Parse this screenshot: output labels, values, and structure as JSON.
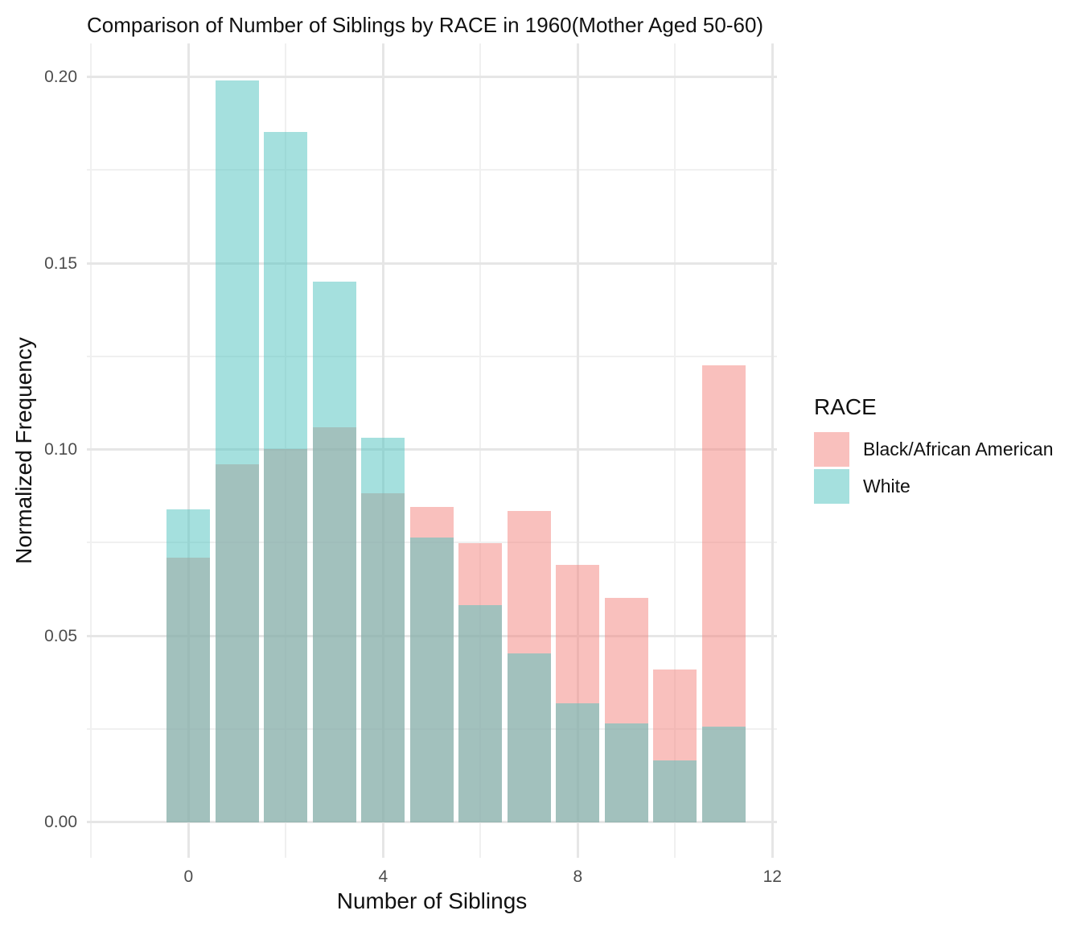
{
  "chart_data": {
    "type": "bar",
    "mode": "overlay",
    "title": "Comparison of Number of Siblings by RACE in 1960(Mother Aged 50-60)",
    "xlabel": "Number of Siblings",
    "ylabel": "Normalized Frequency",
    "legend_title": "RACE",
    "legend_position": "right",
    "grid": true,
    "x": [
      0,
      1,
      2,
      3,
      4,
      5,
      6,
      7,
      8,
      9,
      10,
      11
    ],
    "bar_width": 0.9,
    "series": [
      {
        "name": "Black/African American",
        "fill": "rgba(244,129,123,0.5)",
        "base_color": "#F4817B",
        "values": [
          0.0711,
          0.0961,
          0.1002,
          0.106,
          0.0882,
          0.0847,
          0.0749,
          0.0835,
          0.069,
          0.0601,
          0.041,
          0.1227
        ]
      },
      {
        "name": "White",
        "fill": "rgba(76,194,190,0.5)",
        "base_color": "#4CC2BE",
        "values": [
          0.0839,
          0.1991,
          0.1852,
          0.1451,
          0.1031,
          0.0765,
          0.0582,
          0.0454,
          0.032,
          0.0266,
          0.0166,
          0.0257
        ]
      }
    ],
    "xlim": [
      -2.088,
      12.094
    ],
    "ylim": [
      -0.00957,
      0.209
    ],
    "x_ticks": {
      "major": [
        {
          "value": 0,
          "label": "0"
        },
        {
          "value": 4,
          "label": "4"
        },
        {
          "value": 8,
          "label": "8"
        },
        {
          "value": 12,
          "label": "12"
        }
      ],
      "minor": [
        -2,
        2,
        6,
        10
      ]
    },
    "y_ticks": {
      "major": [
        {
          "value": 0.0,
          "label": "0.00"
        },
        {
          "value": 0.05,
          "label": "0.05"
        },
        {
          "value": 0.1,
          "label": "0.10"
        },
        {
          "value": 0.15,
          "label": "0.15"
        },
        {
          "value": 0.2,
          "label": "0.20"
        }
      ],
      "minor": [
        0.025,
        0.075,
        0.125,
        0.175
      ]
    },
    "colors": {
      "tick_label": "#4d4d4d",
      "text": "#111111",
      "grid_major": "#e6e6e6",
      "grid_minor": "#f0f0f0"
    }
  }
}
